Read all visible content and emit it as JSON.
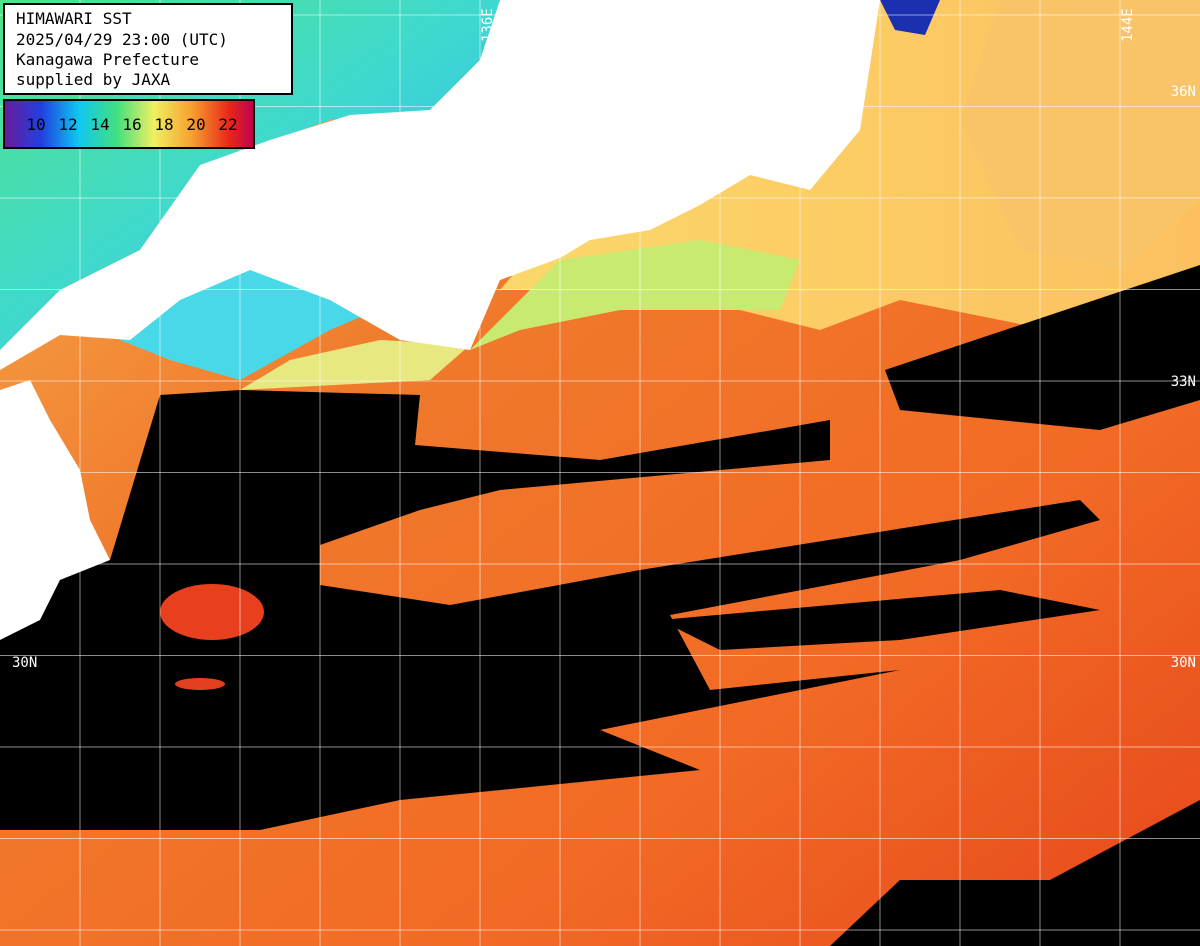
{
  "header": {
    "title": "HIMAWARI SST",
    "datetime": "2025/04/29 23:00 (UTC)",
    "region": "Kanagawa Prefecture",
    "credit": "supplied by JAXA"
  },
  "legend": {
    "labels": [
      10,
      12,
      14,
      16,
      18,
      20,
      22
    ]
  },
  "grid_labels": {
    "lon": [
      "136E",
      "144E"
    ],
    "lat_right": [
      "36N",
      "33N",
      "30N"
    ],
    "lat_left": [
      "30N"
    ]
  }
}
